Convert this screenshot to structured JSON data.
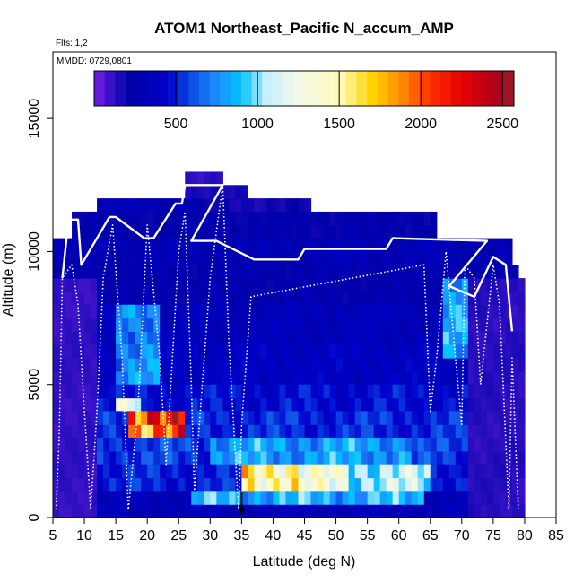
{
  "chart_data": {
    "type": "heatmap",
    "title": "ATOM1 Northeast_Pacific N_accum_AMP",
    "annotations": [
      "Flts: 1,2",
      "MMDD: 0729,0801"
    ],
    "xlabel": "Latitude (deg N)",
    "ylabel": "Altitude (m)",
    "xlim": [
      5,
      85
    ],
    "ylim": [
      0,
      17500
    ],
    "x_ticks": [
      5,
      10,
      15,
      20,
      25,
      30,
      35,
      40,
      45,
      50,
      55,
      60,
      65,
      70,
      75,
      80,
      85
    ],
    "y_ticks": [
      0,
      5000,
      10000,
      15000
    ],
    "colorbar": {
      "range": [
        0,
        2570
      ],
      "ticks": [
        500,
        1000,
        1500,
        2000,
        2500
      ],
      "placement": "top inset"
    },
    "grid": false,
    "cell_size": {
      "lat_deg": 1,
      "alt_m": 500
    },
    "regions": [
      {
        "lat": [
          12,
          35
        ],
        "alt": [
          11500,
          12000
        ],
        "value": 300
      },
      {
        "lat": [
          28,
          46
        ],
        "alt": [
          11500,
          12000
        ],
        "value": 180
      },
      {
        "lat": [
          8,
          66
        ],
        "alt": [
          10500,
          11500
        ],
        "value": 240
      },
      {
        "lat": [
          5,
          78
        ],
        "alt": [
          9500,
          10500
        ],
        "value": 300
      },
      {
        "lat": [
          5,
          79
        ],
        "alt": [
          8000,
          9500
        ],
        "value": 260
      },
      {
        "lat": [
          5,
          79
        ],
        "alt": [
          6500,
          8000
        ],
        "value": 330
      },
      {
        "lat": [
          5,
          80
        ],
        "alt": [
          5000,
          6500
        ],
        "value": 380
      },
      {
        "lat": [
          5,
          80
        ],
        "alt": [
          4000,
          5000
        ],
        "value": 460
      },
      {
        "lat": [
          5,
          80
        ],
        "alt": [
          3000,
          4000
        ],
        "value": 520
      },
      {
        "lat": [
          5,
          80
        ],
        "alt": [
          2000,
          3000
        ],
        "value": 560
      },
      {
        "lat": [
          5,
          80
        ],
        "alt": [
          1000,
          2000
        ],
        "value": 500
      },
      {
        "lat": [
          5,
          80
        ],
        "alt": [
          0,
          1000
        ],
        "value": 320
      },
      {
        "lat": [
          26,
          36
        ],
        "alt": [
          12000,
          12500
        ],
        "value": 160
      },
      {
        "lat": [
          26,
          32
        ],
        "alt": [
          12500,
          13000
        ],
        "value": 120
      },
      {
        "lat": [
          17,
          26
        ],
        "alt": [
          3000,
          4000
        ],
        "value": 1950
      },
      {
        "lat": [
          19,
          25
        ],
        "alt": [
          3500,
          4000
        ],
        "value": 2350
      },
      {
        "lat": [
          15,
          19
        ],
        "alt": [
          4000,
          4500
        ],
        "value": 1150
      },
      {
        "lat": [
          35,
          65
        ],
        "alt": [
          1000,
          2000
        ],
        "value": 1050
      },
      {
        "lat": [
          35,
          44
        ],
        "alt": [
          1000,
          2000
        ],
        "value": 1550
      },
      {
        "lat": [
          44,
          52
        ],
        "alt": [
          1000,
          2000
        ],
        "value": 1250
      },
      {
        "lat": [
          27,
          64
        ],
        "alt": [
          500,
          1000
        ],
        "value": 850
      },
      {
        "lat": [
          30,
          62
        ],
        "alt": [
          2000,
          3000
        ],
        "value": 800
      },
      {
        "lat": [
          15,
          22
        ],
        "alt": [
          5000,
          8000
        ],
        "value": 750
      },
      {
        "lat": [
          67,
          73
        ],
        "alt": [
          6000,
          9000
        ],
        "value": 800
      },
      {
        "lat": [
          5,
          12
        ],
        "alt": [
          0,
          9000
        ],
        "value": 110
      },
      {
        "lat": [
          71,
          80
        ],
        "alt": [
          0,
          9000
        ],
        "value": 130
      }
    ],
    "series": [
      {
        "type": "line",
        "style": "solid white",
        "points": [
          [
            6.5,
            9000
          ],
          [
            7.5,
            11200
          ],
          [
            9,
            11200
          ],
          [
            9.5,
            9500
          ],
          [
            14,
            11300
          ],
          [
            15,
            11300
          ],
          [
            19.5,
            10500
          ],
          [
            21,
            10500
          ],
          [
            24.5,
            11800
          ],
          [
            25.5,
            11800
          ],
          [
            26,
            12500
          ],
          [
            32,
            12500
          ],
          [
            27,
            10400
          ],
          [
            31,
            10400
          ],
          [
            37,
            9700
          ],
          [
            44,
            9700
          ],
          [
            45,
            10100
          ],
          [
            58,
            10100
          ],
          [
            59,
            10500
          ],
          [
            74,
            10400
          ],
          [
            68,
            8700
          ],
          [
            71,
            8400
          ],
          [
            72,
            8300
          ],
          [
            75,
            9800
          ],
          [
            77,
            9500
          ],
          [
            78,
            7000
          ]
        ]
      },
      {
        "type": "line",
        "style": "dotted white",
        "points": [
          [
            5.5,
            300
          ],
          [
            6,
            3000
          ],
          [
            6.5,
            9000
          ],
          [
            8,
            9500
          ],
          [
            9,
            8000
          ],
          [
            10,
            4000
          ],
          [
            11,
            300
          ],
          [
            12,
            4000
          ],
          [
            13,
            9000
          ],
          [
            14.5,
            11000
          ],
          [
            16,
            6000
          ],
          [
            17,
            300
          ],
          [
            18.5,
            4000
          ],
          [
            20,
            11000
          ],
          [
            22,
            6000
          ],
          [
            23,
            2000
          ],
          [
            25,
            10000
          ],
          [
            26,
            11500
          ],
          [
            27,
            5000
          ],
          [
            27.5,
            1000
          ],
          [
            30,
            9000
          ],
          [
            32,
            12500
          ],
          [
            33,
            6500
          ],
          [
            34.5,
            300
          ],
          [
            35,
            3500
          ],
          [
            36.5,
            8300
          ],
          [
            64,
            9500
          ],
          [
            65,
            4000
          ],
          [
            66,
            6000
          ],
          [
            67.5,
            10000
          ],
          [
            69,
            6000
          ],
          [
            70,
            3500
          ],
          [
            70.5,
            9500
          ],
          [
            72,
            9000
          ],
          [
            73,
            5000
          ],
          [
            75,
            9500
          ],
          [
            76,
            8000
          ],
          [
            77.5,
            300
          ],
          [
            78,
            6000
          ],
          [
            79,
            300
          ]
        ]
      }
    ],
    "marker": {
      "type": "arrow",
      "lat": 35,
      "alt": 500,
      "direction": "down"
    }
  }
}
